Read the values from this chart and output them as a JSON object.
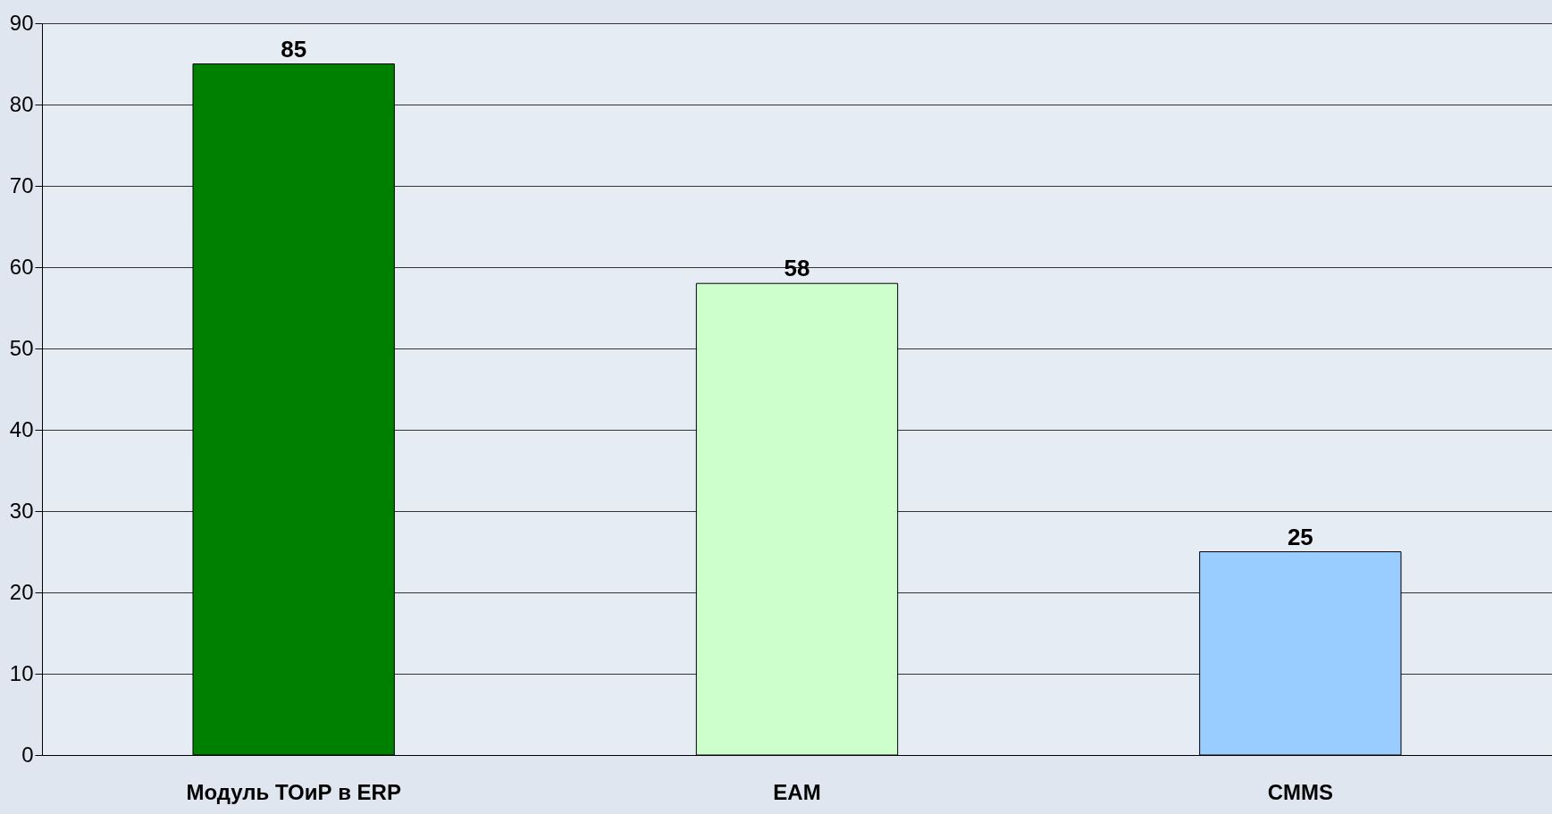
{
  "chart_data": {
    "type": "bar",
    "categories": [
      "Модуль ТОиР в ERP",
      "EAM",
      "CMMS"
    ],
    "values": [
      85,
      58,
      25
    ],
    "colors": [
      "#008000",
      "#ccffcc",
      "#99ccff"
    ],
    "ylim": [
      0,
      90
    ],
    "yticks": [
      0,
      10,
      20,
      30,
      40,
      50,
      60,
      70,
      80,
      90
    ],
    "grid": "y",
    "data_labels": true
  }
}
